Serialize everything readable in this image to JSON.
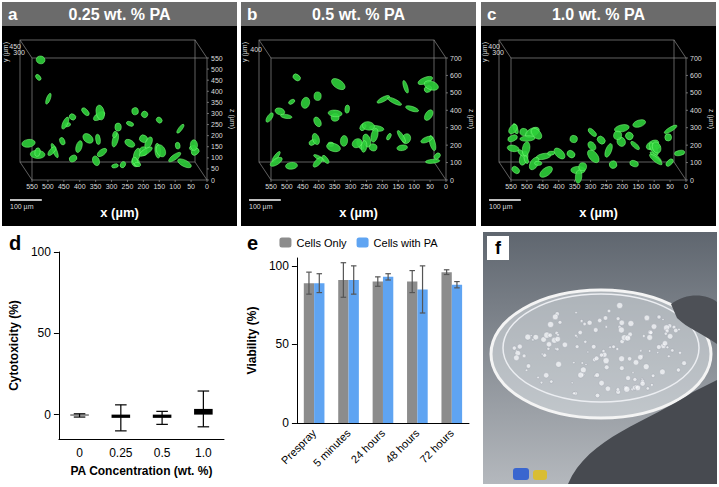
{
  "figure": {
    "image_panels": [
      {
        "letter": "a",
        "title": "0.25 wt. % PA",
        "x_label": "x (µm)",
        "y_label": "y (µm)",
        "z_label": "z (µm)",
        "x_ticks": [
          550,
          500,
          450,
          400,
          350,
          300,
          250,
          200,
          150,
          100,
          50,
          0
        ],
        "y_ticks": [
          300,
          450
        ],
        "z_ticks": [
          0,
          50,
          100,
          150,
          200,
          250,
          300,
          350,
          400,
          450,
          500,
          550
        ],
        "scale_bar": "100 µm"
      },
      {
        "letter": "b",
        "title": "0.5 wt. % PA",
        "x_label": "x (µm)",
        "y_label": "y (µm)",
        "z_label": "z (µm)",
        "x_ticks": [
          550,
          500,
          450,
          400,
          350,
          300,
          250,
          200,
          150,
          100,
          50,
          0
        ],
        "y_ticks": [
          400
        ],
        "z_ticks": [
          0,
          100,
          200,
          300,
          400,
          500,
          600,
          700
        ],
        "scale_bar": "100 µm"
      },
      {
        "letter": "c",
        "title": "1.0 wt. % PA",
        "x_label": "x (µm)",
        "y_label": "y (µm)",
        "z_label": "z (µm)",
        "x_ticks": [
          550,
          500,
          450,
          400,
          350,
          300,
          250,
          200,
          150,
          100,
          50,
          0
        ],
        "y_ticks": [
          300,
          400
        ],
        "z_ticks": [
          0,
          100,
          200,
          300,
          400,
          500,
          600,
          700
        ],
        "scale_bar": "100 µm"
      }
    ],
    "photo_panel": {
      "letter": "f"
    }
  },
  "chart_data": [
    {
      "panel": "d",
      "type": "bar",
      "x_label": "PA Concentration (wt. %)",
      "y_label": "Cytotoxicity (%)",
      "categories": [
        "0",
        "0.25",
        "0.5",
        "1.0"
      ],
      "values": [
        -0.5,
        -2,
        -2,
        3.5
      ],
      "errors": [
        1,
        8,
        4,
        11
      ],
      "color": "#000000",
      "ylim": [
        -15,
        100
      ],
      "yticks": [
        0,
        50,
        100
      ],
      "grid": false
    },
    {
      "panel": "e",
      "type": "bar",
      "y_label": "Viability (%)",
      "categories": [
        "Prespray",
        "5 minutes",
        "24 hours",
        "48 hours",
        "72 hours"
      ],
      "series": [
        {
          "name": "Cells Only",
          "color": "#8c8c8c",
          "values": [
            89,
            91,
            90,
            90,
            96
          ],
          "errors": [
            7,
            11,
            3,
            7,
            1.5
          ]
        },
        {
          "name": "Cells with PA",
          "color": "#5fa4f2",
          "values": [
            89,
            91,
            93,
            85,
            88
          ],
          "errors": [
            6,
            9,
            2,
            15,
            2
          ]
        }
      ],
      "ylim": [
        0,
        105
      ],
      "yticks": [
        0,
        50,
        100
      ],
      "grid": false,
      "legend": "top"
    }
  ]
}
